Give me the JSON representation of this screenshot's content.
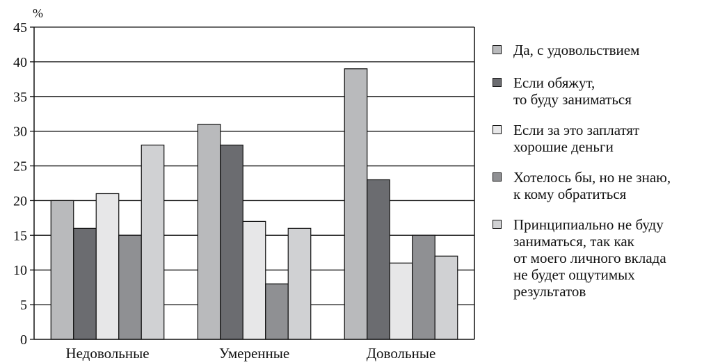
{
  "chart_data": {
    "type": "bar",
    "ylabel": "%",
    "ylim": [
      0,
      45
    ],
    "yticks": [
      0,
      5,
      10,
      15,
      20,
      25,
      30,
      35,
      40,
      45
    ],
    "grid": true,
    "legend_position": "right",
    "categories": [
      "Недовольные",
      "Умеренные",
      "Довольные"
    ],
    "series": [
      {
        "name": "Да, с удовольствием",
        "color": "#b9babc",
        "values": [
          20,
          31,
          39
        ]
      },
      {
        "name": "Если обяжут,\nто буду заниматься",
        "color": "#6b6c70",
        "values": [
          16,
          28,
          23
        ]
      },
      {
        "name": "Если за это заплатят\nхорошие деньги",
        "color": "#e7e7e8",
        "values": [
          21,
          17,
          11
        ]
      },
      {
        "name": "Хотелось бы, но не знаю,\nк кому обратиться",
        "color": "#8f9093",
        "values": [
          15,
          8,
          15
        ]
      },
      {
        "name": "Принципиально не буду\nзаниматься, так как\nот моего личного вклада\nне будет ощутимых\nрезультатов",
        "color": "#d0d1d3",
        "values": [
          28,
          16,
          12
        ]
      }
    ]
  }
}
